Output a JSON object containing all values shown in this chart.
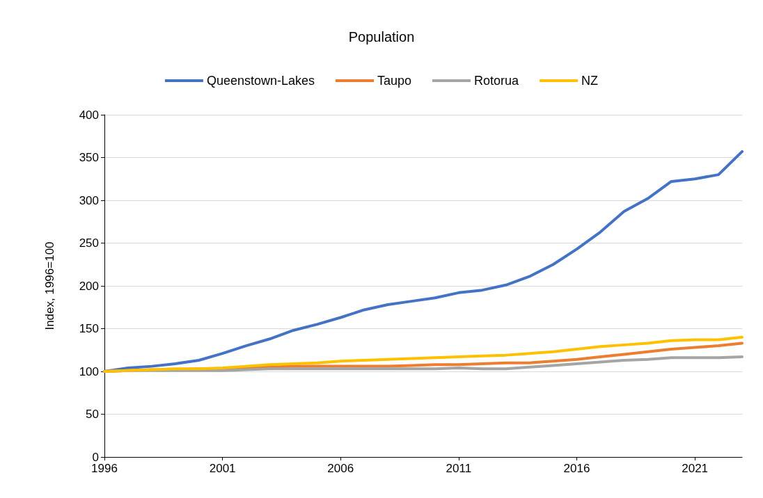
{
  "chart_data": {
    "type": "line",
    "title": "Population",
    "ylabel": "Index, 1996=100",
    "x": [
      1996,
      1997,
      1998,
      1999,
      2000,
      2001,
      2002,
      2003,
      2004,
      2005,
      2006,
      2007,
      2008,
      2009,
      2010,
      2011,
      2012,
      2013,
      2014,
      2015,
      2016,
      2017,
      2018,
      2019,
      2020,
      2021,
      2022,
      2023
    ],
    "series": [
      {
        "name": "Queenstown-Lakes",
        "color": "#4472c4",
        "values": [
          100,
          104,
          106,
          109,
          113,
          121,
          130,
          138,
          148,
          155,
          163,
          172,
          178,
          182,
          186,
          192,
          195,
          201,
          211,
          225,
          243,
          263,
          287,
          302,
          322,
          325,
          330,
          357
        ]
      },
      {
        "name": "Taupo",
        "color": "#ed7d31",
        "values": [
          100,
          101,
          102,
          102,
          103,
          103,
          104,
          105,
          106,
          106,
          106,
          106,
          106,
          107,
          108,
          108,
          109,
          110,
          110,
          112,
          114,
          117,
          120,
          123,
          126,
          128,
          130,
          133
        ]
      },
      {
        "name": "Rotorua",
        "color": "#a5a5a5",
        "values": [
          100,
          101,
          101,
          101,
          101,
          101,
          102,
          103,
          103,
          103,
          103,
          103,
          103,
          103,
          103,
          104,
          103,
          103,
          105,
          107,
          109,
          111,
          113,
          114,
          116,
          116,
          116,
          117
        ]
      },
      {
        "name": "NZ",
        "color": "#ffc000",
        "values": [
          100,
          101,
          102,
          103,
          103,
          104,
          106,
          108,
          109,
          110,
          112,
          113,
          114,
          115,
          116,
          117,
          118,
          119,
          121,
          123,
          126,
          129,
          131,
          133,
          136,
          137,
          137,
          140
        ]
      }
    ],
    "xlim": [
      1996,
      2023
    ],
    "xticks": [
      1996,
      2001,
      2006,
      2011,
      2016,
      2021
    ],
    "ylim": [
      0,
      400
    ],
    "yticks": [
      0,
      50,
      100,
      150,
      200,
      250,
      300,
      350,
      400
    ],
    "grid": "y",
    "legend": "top",
    "marker": "none",
    "line_style": "solid"
  }
}
